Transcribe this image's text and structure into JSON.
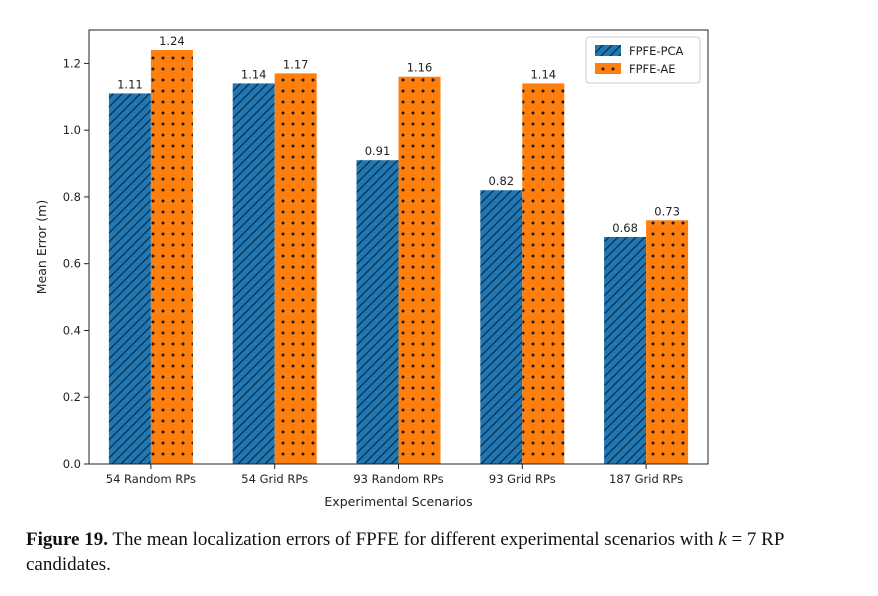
{
  "chart_data": {
    "type": "bar",
    "xlabel": "Experimental Scenarios",
    "ylabel": "Mean Error (m)",
    "categories": [
      "54 Random RPs",
      "54 Grid RPs",
      "93 Random RPs",
      "93 Grid RPs",
      "187 Grid RPs"
    ],
    "series": [
      {
        "name": "FPFE-PCA",
        "values": [
          1.11,
          1.14,
          0.91,
          0.82,
          0.68
        ],
        "color": "#1f77b4",
        "hatch": "diagonal"
      },
      {
        "name": "FPFE-AE",
        "values": [
          1.24,
          1.17,
          1.16,
          1.14,
          0.73
        ],
        "color": "#ff7f0e",
        "hatch": "dots"
      }
    ],
    "value_labels": [
      [
        "1.11",
        "1.14",
        "0.91",
        "0.82",
        "0.68"
      ],
      [
        "1.24",
        "1.17",
        "1.16",
        "1.14",
        "0.73"
      ]
    ],
    "ylim": [
      0,
      1.3
    ],
    "yticks": [
      0.0,
      0.2,
      0.4,
      0.6,
      0.8,
      1.0,
      1.2
    ],
    "ytick_labels": [
      "0.0",
      "0.2",
      "0.4",
      "0.6",
      "0.8",
      "1.0",
      "1.2"
    ],
    "legend_position": "top-right",
    "grid": false
  },
  "caption": {
    "label": "Figure 19.",
    "text_before": "The mean localization errors of FPFE for different experimental scenarios with",
    "var": "k",
    "text_after": "= 7 RP candidates."
  }
}
